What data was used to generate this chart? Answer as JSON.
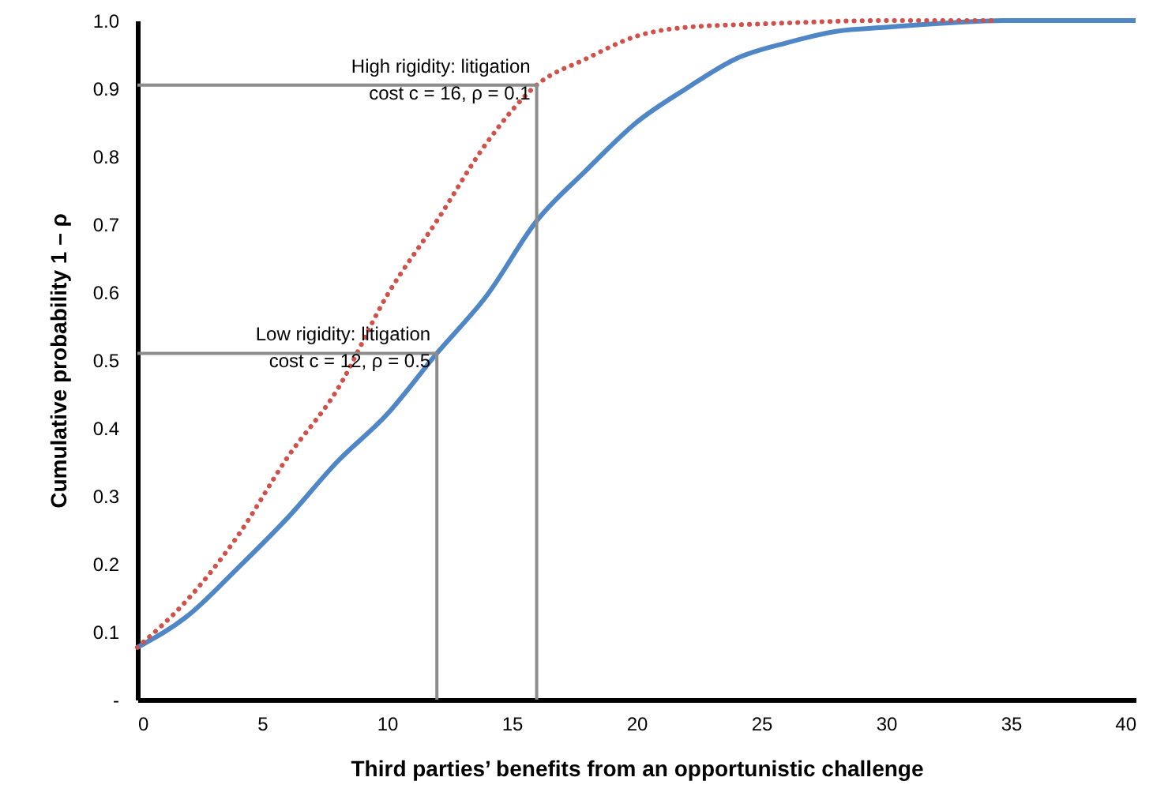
{
  "chart_data": {
    "type": "line",
    "xlabel": "Third parties’ benefits from an opportunistic challenge",
    "ylabel": "Cumulative probability  1 – ρ",
    "xlim": [
      0,
      40
    ],
    "xticks": [
      0,
      5,
      10,
      15,
      20,
      25,
      30,
      35,
      40
    ],
    "ylim": [
      0,
      1
    ],
    "yticks": [
      {
        "value": 0,
        "label": "-"
      },
      0.1,
      0.2,
      0.3,
      0.4,
      0.5,
      0.6,
      0.7,
      0.8,
      0.9,
      {
        "value": 1,
        "label": "1.0"
      }
    ],
    "grid": false,
    "marker": "none",
    "series": [
      {
        "color": "#4f86c6",
        "line_style": "solid",
        "x": [
          0,
          2,
          4,
          6,
          8,
          10,
          12,
          14,
          16,
          18,
          20,
          22,
          24,
          26,
          28,
          30,
          35,
          40
        ],
        "values": [
          0.077,
          0.123,
          0.193,
          0.267,
          0.35,
          0.42,
          0.51,
          0.595,
          0.705,
          0.78,
          0.85,
          0.9,
          0.944,
          0.967,
          0.984,
          0.99,
          1.0,
          1.0
        ]
      },
      {
        "color": "#d0504a",
        "line_style": "dotted",
        "x": [
          0,
          2,
          4,
          6,
          8,
          10,
          12,
          14,
          16,
          18,
          20,
          22,
          25,
          30,
          34.4
        ],
        "values": [
          0.077,
          0.147,
          0.24,
          0.356,
          0.456,
          0.595,
          0.705,
          0.82,
          0.905,
          0.944,
          0.977,
          0.99,
          0.995,
          1.0,
          1.0
        ]
      },
      {
        "color": "#8c8c8c",
        "line_style": "solid",
        "x": [
          0,
          12,
          12
        ],
        "values": [
          0.51,
          0.51,
          0
        ]
      },
      {
        "color": "#8c8c8c",
        "line_style": "solid",
        "x": [
          0,
          16,
          16
        ],
        "values": [
          0.905,
          0.905,
          0
        ]
      }
    ],
    "annotations": [
      {
        "text": "High rigidity: litigation\ncost c = 16, ρ = 0.1",
        "x": 16,
        "y": 0.905
      },
      {
        "text": "Low rigidity: litigation\ncost c = 12, ρ = 0.5",
        "x": 12,
        "y": 0.51
      }
    ]
  }
}
